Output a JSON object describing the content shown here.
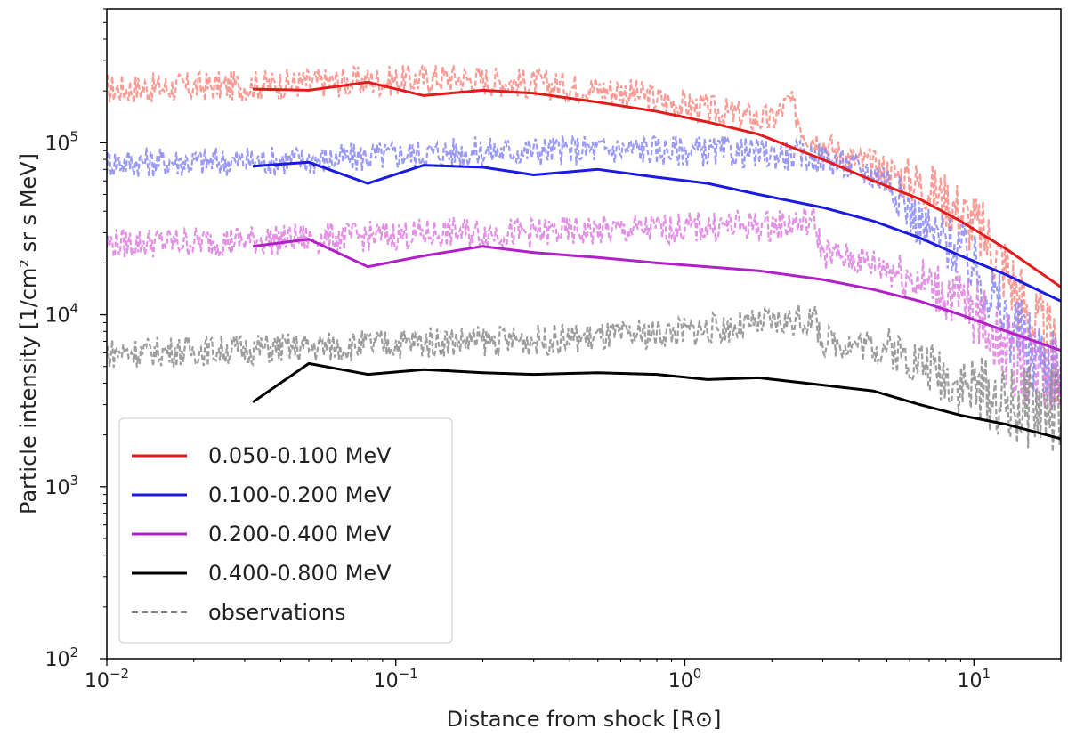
{
  "chart_data": {
    "type": "line",
    "title": "",
    "xlabel": "Distance from shock [R⊙]",
    "ylabel": "Particle intensity [1/cm² sr s MeV]",
    "xscale": "log",
    "yscale": "log",
    "xlim": [
      0.01,
      20
    ],
    "ylim": [
      100,
      600000
    ],
    "x_ticks": [
      {
        "value": 0.01,
        "base": "10",
        "exp": "−2"
      },
      {
        "value": 0.1,
        "base": "10",
        "exp": "−1"
      },
      {
        "value": 1,
        "base": "10",
        "exp": "0"
      },
      {
        "value": 10,
        "base": "10",
        "exp": "1"
      }
    ],
    "y_ticks": [
      {
        "value": 100,
        "base": "10",
        "exp": "2"
      },
      {
        "value": 1000,
        "base": "10",
        "exp": "3"
      },
      {
        "value": 10000,
        "base": "10",
        "exp": "4"
      },
      {
        "value": 100000,
        "base": "10",
        "exp": "5"
      }
    ],
    "legend_position": "lower-left",
    "series": [
      {
        "name": "0.050-0.100 MeV",
        "color": "#e31a1a",
        "x": [
          0.032,
          0.05,
          0.08,
          0.125,
          0.2,
          0.3,
          0.5,
          0.8,
          1.2,
          1.8,
          3.0,
          4.5,
          6.5,
          9.0,
          13.0,
          20.0
        ],
        "values": [
          205000,
          202000,
          225000,
          188000,
          202000,
          194000,
          172000,
          152000,
          132000,
          112000,
          80000,
          60000,
          47000,
          35000,
          24000,
          14500
        ]
      },
      {
        "name": "0.100-0.200 MeV",
        "color": "#1a1ae3",
        "x": [
          0.032,
          0.05,
          0.08,
          0.125,
          0.2,
          0.3,
          0.5,
          0.8,
          1.2,
          1.8,
          3.0,
          4.5,
          6.5,
          9.0,
          13.0,
          20.0
        ],
        "values": [
          73000,
          77000,
          58000,
          74000,
          72000,
          65000,
          70000,
          63000,
          58000,
          50000,
          42000,
          35000,
          28000,
          22000,
          17000,
          12000
        ]
      },
      {
        "name": "0.200-0.400 MeV",
        "color": "#b01fc8",
        "x": [
          0.032,
          0.05,
          0.08,
          0.125,
          0.2,
          0.3,
          0.5,
          0.8,
          1.2,
          1.8,
          3.0,
          4.5,
          6.5,
          9.0,
          13.0,
          20.0
        ],
        "values": [
          25000,
          27500,
          19000,
          22000,
          25000,
          23000,
          21500,
          20000,
          19000,
          18000,
          16000,
          14000,
          12000,
          10000,
          8000,
          6200
        ]
      },
      {
        "name": "0.400-0.800 MeV",
        "color": "#000000",
        "x": [
          0.032,
          0.05,
          0.08,
          0.125,
          0.2,
          0.3,
          0.5,
          0.8,
          1.2,
          1.8,
          3.0,
          4.5,
          6.5,
          9.0,
          13.0,
          20.0
        ],
        "values": [
          3100,
          5200,
          4500,
          4800,
          4600,
          4500,
          4600,
          4500,
          4200,
          4300,
          3900,
          3600,
          3000,
          2600,
          2300,
          1900
        ]
      }
    ],
    "observations": {
      "name": "observations",
      "color": "#808080",
      "style": "dashed",
      "series": [
        {
          "color": "#f07c74",
          "fill": "#fa8a82",
          "x": [
            0.01,
            0.03,
            0.06,
            0.1,
            0.15,
            0.3,
            0.6,
            1.0,
            1.5,
            2.0,
            2.3,
            2.6,
            3.5,
            5.0,
            7.0,
            9.0,
            11.0,
            13.0,
            16.0,
            20.0
          ],
          "values": [
            205000,
            215000,
            225000,
            230000,
            240000,
            220000,
            200000,
            165000,
            145000,
            135000,
            175000,
            115000,
            85000,
            68000,
            55000,
            40000,
            28000,
            18000,
            9000,
            5000
          ]
        },
        {
          "color": "#7f80f0",
          "fill": "#8888f5",
          "x": [
            0.01,
            0.03,
            0.06,
            0.1,
            0.15,
            0.3,
            0.6,
            1.0,
            1.5,
            2.0,
            3.0,
            5.0,
            6.0,
            7.0,
            9.0,
            11.0,
            13.0,
            16.0,
            20.0
          ],
          "values": [
            77000,
            78000,
            80000,
            85000,
            88000,
            90000,
            92000,
            90000,
            88000,
            86000,
            82000,
            62000,
            40000,
            30000,
            24000,
            15000,
            9000,
            6000,
            5000
          ]
        },
        {
          "color": "#d774d8",
          "fill": "#dd7ee0",
          "x": [
            0.01,
            0.03,
            0.06,
            0.1,
            0.15,
            0.3,
            0.6,
            1.0,
            1.5,
            2.0,
            2.8,
            3.0,
            5.0,
            7.0,
            9.0,
            11.0,
            13.0,
            16.0,
            20.0
          ],
          "values": [
            26000,
            27000,
            28000,
            29000,
            30000,
            30000,
            31000,
            32000,
            33000,
            33000,
            35000,
            23000,
            19000,
            15000,
            12000,
            9000,
            6000,
            5000,
            4500
          ]
        },
        {
          "color": "#808080",
          "fill": "#8c8c8c",
          "x": [
            0.01,
            0.03,
            0.06,
            0.1,
            0.15,
            0.3,
            0.6,
            1.0,
            1.5,
            2.0,
            2.8,
            3.0,
            5.0,
            7.0,
            9.0,
            11.0,
            13.0,
            16.0,
            20.0
          ],
          "values": [
            6000,
            6300,
            6500,
            6800,
            7000,
            7100,
            7500,
            8000,
            8500,
            9000,
            9500,
            7000,
            6500,
            5000,
            4000,
            3500,
            3000,
            2900,
            2800
          ]
        }
      ]
    }
  }
}
